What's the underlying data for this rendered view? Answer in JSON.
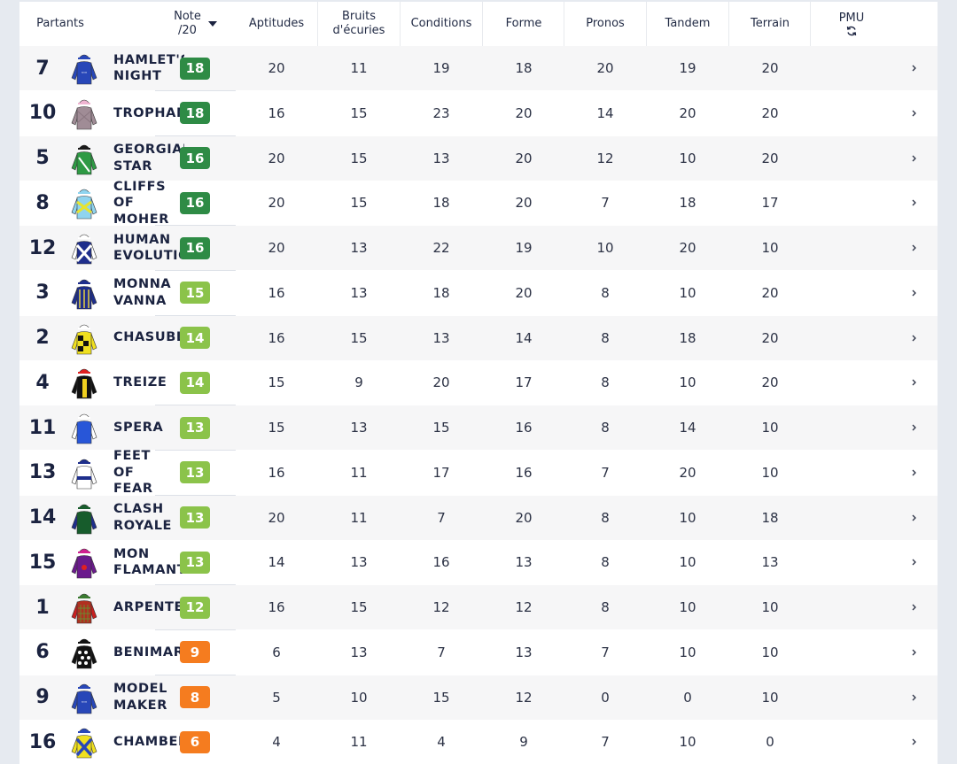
{
  "header": {
    "partants": "Partants",
    "note_line1": "Note",
    "note_line2": "/20",
    "sort_icon": "caret-down-icon",
    "aptitudes": "Aptitudes",
    "bruits_line1": "Bruits",
    "bruits_line2": "d'écuries",
    "conditions": "Conditions",
    "forme": "Forme",
    "pronos": "Pronos",
    "tandem": "Tandem",
    "terrain": "Terrain",
    "pmu": "PMU",
    "pmu_icon": "refresh-icon"
  },
  "colors": {
    "dark_green": "#2e8b45",
    "light_green": "#8bc34a",
    "orange": "#f57c1f",
    "shade": "#dde1e8"
  },
  "rows": [
    {
      "num": "7",
      "name": "HAMLET'S\nNIGHT",
      "note": "18",
      "note_level": "dark_green",
      "silk": "blue",
      "scores": [
        "20",
        "11",
        "19",
        "18",
        "20",
        "19",
        "20"
      ]
    },
    {
      "num": "10",
      "name": "TROPHANE",
      "note": "18",
      "note_level": "dark_green",
      "silk": "grey",
      "scores": [
        "16",
        "15",
        "23",
        "20",
        "14",
        "20",
        "20"
      ]
    },
    {
      "num": "5",
      "name": "GEORGIAN\nSTAR",
      "note": "16",
      "note_level": "dark_green",
      "silk": "green",
      "scores": [
        "20",
        "15",
        "13",
        "20",
        "12",
        "10",
        "20"
      ]
    },
    {
      "num": "8",
      "name": "CLIFFS\nOF\nMOHER",
      "note": "16",
      "note_level": "dark_green",
      "silk": "lightblue",
      "scores": [
        "20",
        "15",
        "18",
        "20",
        "7",
        "18",
        "17"
      ]
    },
    {
      "num": "12",
      "name": "HUMAN\nEVOLUTION",
      "note": "16",
      "note_level": "dark_green",
      "silk": "navycross",
      "scores": [
        "20",
        "13",
        "22",
        "19",
        "10",
        "20",
        "10"
      ]
    },
    {
      "num": "3",
      "name": "MONNA\nVANNA",
      "note": "15",
      "note_level": "light_green",
      "silk": "navystripe",
      "scores": [
        "16",
        "13",
        "18",
        "20",
        "8",
        "10",
        "20"
      ]
    },
    {
      "num": "2",
      "name": "CHASUBLE",
      "note": "14",
      "note_level": "light_green",
      "silk": "yellowcheck",
      "scores": [
        "16",
        "15",
        "13",
        "14",
        "8",
        "18",
        "20"
      ]
    },
    {
      "num": "4",
      "name": "TREIZE",
      "note": "14",
      "note_level": "light_green",
      "silk": "blackyellow",
      "scores": [
        "15",
        "9",
        "20",
        "17",
        "8",
        "10",
        "20"
      ]
    },
    {
      "num": "11",
      "name": "SPERA",
      "note": "13",
      "note_level": "light_green",
      "silk": "bluewhite",
      "scores": [
        "15",
        "13",
        "15",
        "16",
        "8",
        "14",
        "10"
      ]
    },
    {
      "num": "13",
      "name": "FEET\nOF\nFEAR",
      "note": "13",
      "note_level": "light_green",
      "silk": "whitenavy",
      "scores": [
        "16",
        "11",
        "17",
        "16",
        "7",
        "20",
        "10"
      ]
    },
    {
      "num": "14",
      "name": "CLASH\nROYALE",
      "note": "13",
      "note_level": "light_green",
      "silk": "darkgreen",
      "scores": [
        "20",
        "11",
        "7",
        "20",
        "8",
        "10",
        "18"
      ]
    },
    {
      "num": "15",
      "name": "MON\nFLAMANT",
      "note": "13",
      "note_level": "light_green",
      "silk": "purple",
      "scores": [
        "14",
        "13",
        "16",
        "13",
        "8",
        "10",
        "13"
      ]
    },
    {
      "num": "1",
      "name": "ARPENTEUR",
      "note": "12",
      "note_level": "light_green",
      "silk": "redcheck",
      "scores": [
        "16",
        "15",
        "12",
        "12",
        "8",
        "10",
        "10"
      ]
    },
    {
      "num": "6",
      "name": "BENIMARU",
      "note": "9",
      "note_level": "orange",
      "silk": "spots",
      "scores": [
        "6",
        "13",
        "7",
        "13",
        "7",
        "10",
        "10"
      ]
    },
    {
      "num": "9",
      "name": "MODEL\nMAKER",
      "note": "8",
      "note_level": "orange",
      "silk": "blue",
      "scores": [
        "5",
        "10",
        "15",
        "12",
        "0",
        "0",
        "10"
      ]
    },
    {
      "num": "16",
      "name": "CHAMBERY",
      "note": "6",
      "note_level": "orange",
      "silk": "yellowcross",
      "scores": [
        "4",
        "11",
        "4",
        "9",
        "7",
        "10",
        "0"
      ]
    }
  ]
}
